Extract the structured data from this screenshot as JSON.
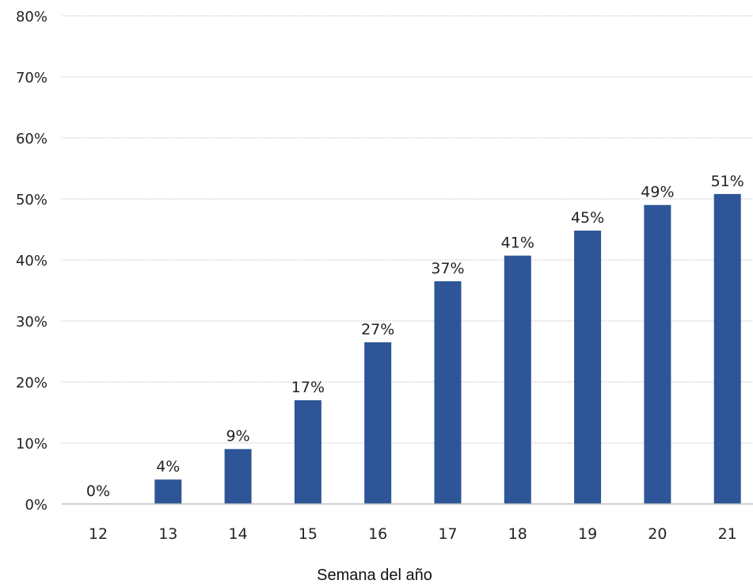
{
  "chart_data": {
    "type": "bar",
    "categories": [
      "12",
      "13",
      "14",
      "15",
      "16",
      "17",
      "18",
      "19",
      "20",
      "21"
    ],
    "values": [
      0,
      4,
      9,
      17,
      26.5,
      36.5,
      40.7,
      44.8,
      49,
      50.8
    ],
    "data_labels": [
      "0%",
      "4%",
      "9%",
      "17%",
      "27%",
      "37%",
      "41%",
      "45%",
      "49%",
      "51%"
    ],
    "title": "",
    "xlabel": "Semana del año",
    "ylabel": "",
    "ylim": [
      0,
      80
    ],
    "yticks": [
      0,
      10,
      20,
      30,
      40,
      50,
      60,
      70,
      80
    ],
    "ytick_labels": [
      "0%",
      "10%",
      "20%",
      "30%",
      "40%",
      "50%",
      "60%",
      "70%",
      "80%"
    ],
    "grid": true,
    "legend": "none",
    "colors": {
      "bar": "#2e5597",
      "grid": "#cfcfcf",
      "axis": "#bfbfbf"
    }
  }
}
